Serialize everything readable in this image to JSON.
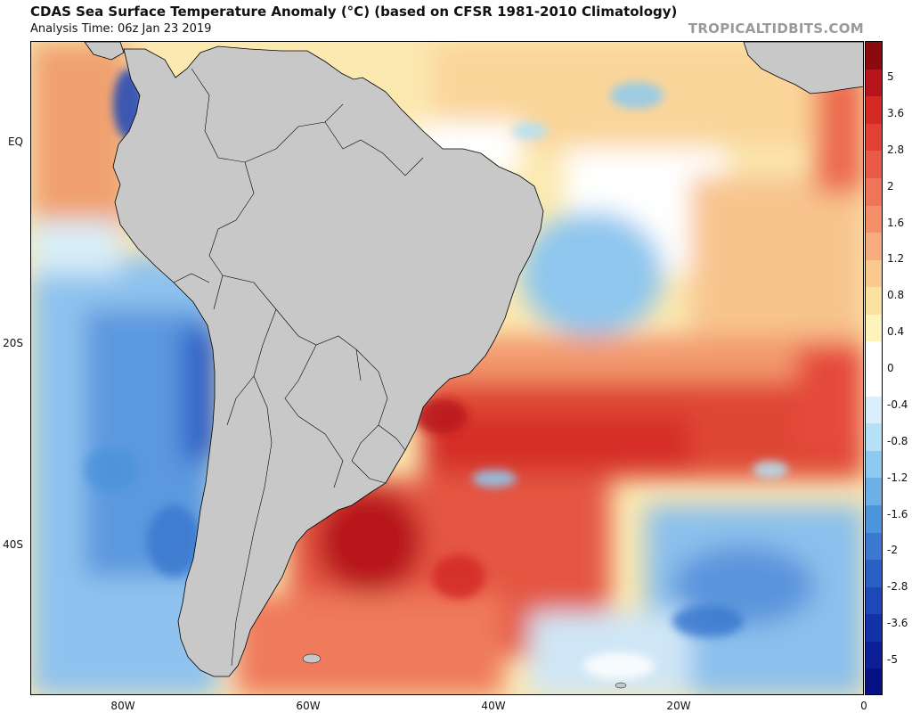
{
  "header": {
    "title": "CDAS Sea Surface Temperature Anomaly (°C) (based on CFSR 1981-2010 Climatology)",
    "subtitle": "Analysis Time: 06z Jan 23 2019",
    "site": "TROPICALTIDBITS.COM"
  },
  "map": {
    "lat_labels": [
      {
        "label": "EQ",
        "lat": 0
      },
      {
        "label": "20S",
        "lat": -20
      },
      {
        "label": "40S",
        "lat": -40
      }
    ],
    "lon_labels": [
      {
        "label": "80W",
        "lon": -80
      },
      {
        "label": "60W",
        "lon": -60
      },
      {
        "label": "40W",
        "lon": -40
      },
      {
        "label": "20W",
        "lon": -20
      },
      {
        "label": "0",
        "lon": 0
      }
    ],
    "extent": {
      "lon_min": -90,
      "lon_max": 0,
      "lat_min": -55,
      "lat_max": 10
    },
    "land_color": "#c8c8c8"
  },
  "colorbar": {
    "labels": [
      "5",
      "3.6",
      "2.8",
      "2",
      "1.6",
      "1.2",
      "0.8",
      "0.4",
      "0",
      "-0.4",
      "-0.8",
      "-1.2",
      "-1.6",
      "-2",
      "-2.8",
      "-3.6",
      "-5"
    ],
    "colors": [
      "#8a0a10",
      "#b8141c",
      "#d42a26",
      "#e24034",
      "#ea5a48",
      "#ef7558",
      "#f39068",
      "#f6ac7c",
      "#f9c98e",
      "#fbe2a0",
      "#fdf4bc",
      "#ffffff",
      "#ffffff",
      "#d9f0fb",
      "#b5e0f5",
      "#8ecaef",
      "#6cb0e6",
      "#4e94db",
      "#3a79cf",
      "#2a5fc4",
      "#1e47b8",
      "#1432a8",
      "#0c1f96",
      "#061283"
    ]
  }
}
